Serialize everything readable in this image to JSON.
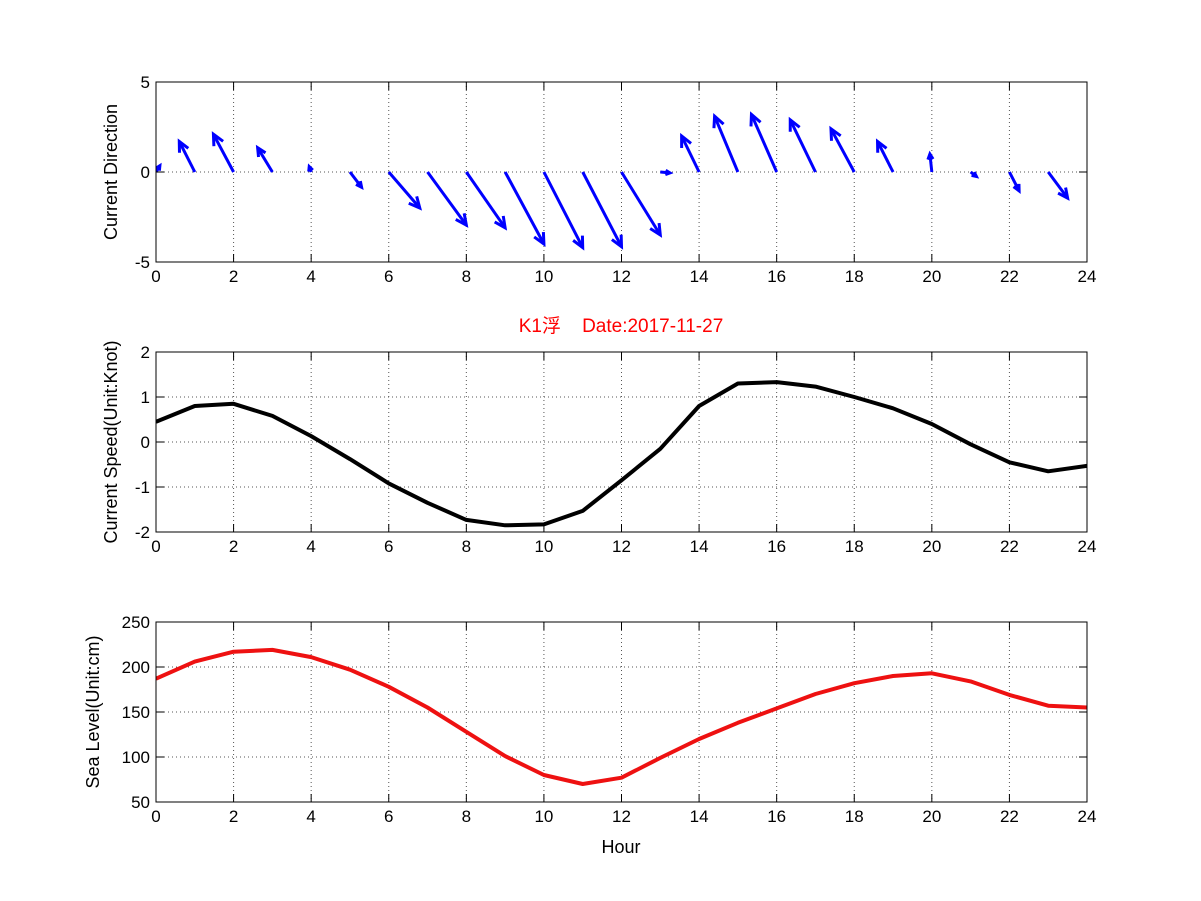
{
  "figure_title": "K1浮    Date:2017-11-27",
  "title_color": "#ff0000",
  "chart_data": [
    {
      "type": "quiver",
      "name": "current-direction",
      "ylabel": "Current Direction",
      "xlabel": "",
      "xlim": [
        0,
        24
      ],
      "ylim": [
        -5,
        5
      ],
      "xticks": [
        0,
        2,
        4,
        6,
        8,
        10,
        12,
        14,
        16,
        18,
        20,
        22,
        24
      ],
      "yticks": [
        -5,
        0,
        5
      ],
      "grid": true,
      "color": "#0000ff",
      "x": [
        0,
        1,
        2,
        3,
        4,
        5,
        6,
        7,
        8,
        9,
        10,
        11,
        12,
        13,
        14,
        15,
        16,
        17,
        18,
        19,
        20,
        21,
        22,
        23
      ],
      "u": [
        0.1,
        -0.4,
        -0.52,
        -0.38,
        -0.05,
        0.3,
        0.8,
        1.0,
        1.0,
        1.0,
        1.0,
        1.0,
        1.0,
        0.25,
        -0.45,
        -0.6,
        -0.65,
        -0.65,
        -0.6,
        -0.4,
        -0.05,
        0.15,
        0.25,
        0.5
      ],
      "v": [
        0.35,
        1.7,
        2.1,
        1.35,
        0.3,
        -0.85,
        -2.0,
        -2.95,
        -3.1,
        -4.0,
        -4.2,
        -4.15,
        -3.5,
        -0.05,
        2.0,
        3.1,
        3.2,
        2.9,
        2.4,
        1.7,
        1.0,
        -0.25,
        -1.05,
        -1.45
      ]
    },
    {
      "type": "line",
      "name": "current-speed",
      "ylabel": "Current Speed(Unit:Knot)",
      "xlabel": "",
      "xlim": [
        0,
        24
      ],
      "ylim": [
        -2,
        2
      ],
      "xticks": [
        0,
        2,
        4,
        6,
        8,
        10,
        12,
        14,
        16,
        18,
        20,
        22,
        24
      ],
      "yticks": [
        -2,
        -1,
        0,
        1,
        2
      ],
      "grid": true,
      "color": "#000000",
      "x": [
        0,
        1,
        2,
        3,
        4,
        5,
        6,
        7,
        8,
        9,
        10,
        11,
        12,
        13,
        14,
        15,
        16,
        17,
        18,
        19,
        20,
        21,
        22,
        23,
        24
      ],
      "y": [
        0.45,
        0.8,
        0.85,
        0.58,
        0.13,
        -0.38,
        -0.92,
        -1.35,
        -1.73,
        -1.85,
        -1.83,
        -1.53,
        -0.85,
        -0.15,
        0.8,
        1.3,
        1.33,
        1.23,
        1.0,
        0.75,
        0.4,
        -0.05,
        -0.45,
        -0.65,
        -0.53
      ]
    },
    {
      "type": "line",
      "name": "sea-level",
      "ylabel": "Sea Level(Unit:cm)",
      "xlabel": "Hour",
      "xlim": [
        0,
        24
      ],
      "ylim": [
        50,
        250
      ],
      "xticks": [
        0,
        2,
        4,
        6,
        8,
        10,
        12,
        14,
        16,
        18,
        20,
        22,
        24
      ],
      "yticks": [
        50,
        100,
        150,
        200,
        250
      ],
      "grid": true,
      "color": "#ee1111",
      "x": [
        0,
        1,
        2,
        3,
        4,
        5,
        6,
        7,
        8,
        9,
        10,
        11,
        12,
        13,
        14,
        15,
        16,
        17,
        18,
        19,
        20,
        21,
        22,
        23,
        24
      ],
      "y": [
        187,
        206,
        217,
        219,
        211,
        197,
        178,
        155,
        128,
        101,
        80,
        70,
        77,
        99,
        120,
        138,
        154,
        170,
        182,
        190,
        193,
        184,
        169,
        157,
        155
      ]
    }
  ]
}
